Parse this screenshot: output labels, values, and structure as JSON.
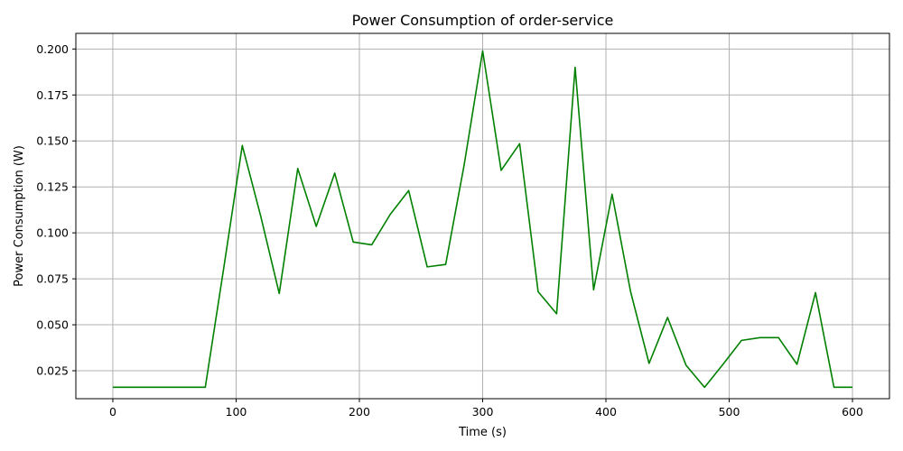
{
  "chart_data": {
    "type": "line",
    "title": "Power Consumption of order-service",
    "xlabel": "Time (s)",
    "ylabel": "Power Consumption (W)",
    "xlim": [
      -30,
      630
    ],
    "ylim": [
      0.0098,
      0.2085
    ],
    "grid": true,
    "x_ticks": [
      0,
      100,
      200,
      300,
      400,
      500,
      600
    ],
    "x_tick_labels": [
      "0",
      "100",
      "200",
      "300",
      "400",
      "500",
      "600"
    ],
    "y_ticks": [
      0.025,
      0.05,
      0.075,
      0.1,
      0.125,
      0.15,
      0.175,
      0.2
    ],
    "y_tick_labels": [
      "0.025",
      "0.050",
      "0.075",
      "0.100",
      "0.125",
      "0.150",
      "0.175",
      "0.200"
    ],
    "series": [
      {
        "color": "#008000",
        "x": [
          0,
          15,
          30,
          45,
          60,
          75,
          90,
          105,
          120,
          135,
          150,
          165,
          180,
          195,
          210,
          225,
          240,
          255,
          270,
          285,
          300,
          315,
          330,
          345,
          360,
          375,
          390,
          405,
          420,
          435,
          450,
          465,
          480,
          495,
          510,
          525,
          540,
          555,
          570,
          585,
          600
        ],
        "y": [
          0.016,
          0.016,
          0.016,
          0.016,
          0.016,
          0.016,
          0.081,
          0.1475,
          0.109,
          0.067,
          0.135,
          0.1035,
          0.1325,
          0.095,
          0.0935,
          0.11,
          0.123,
          0.0815,
          0.0828,
          0.137,
          0.199,
          0.134,
          0.1485,
          0.068,
          0.056,
          0.19,
          0.069,
          0.121,
          0.068,
          0.029,
          0.054,
          0.028,
          0.016,
          0.0285,
          0.0415,
          0.043,
          0.043,
          0.0285,
          0.0675,
          0.016,
          0.016
        ]
      }
    ]
  }
}
